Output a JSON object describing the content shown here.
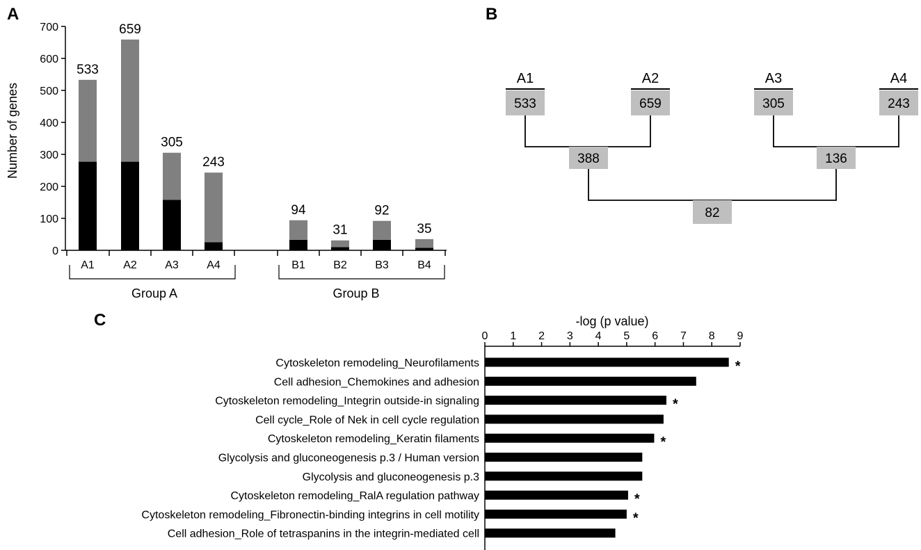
{
  "panels": {
    "a": "A",
    "b": "B",
    "c": "C"
  },
  "colors": {
    "total_bar": "#808080",
    "shared_bar": "#000000",
    "box_fill": "#bfbfbf",
    "line": "#000000"
  },
  "chart_data": [
    {
      "type": "bar",
      "stacked": true,
      "panel": "A",
      "categories": [
        "A1",
        "A2",
        "A3",
        "A4",
        "B1",
        "B2",
        "B3",
        "B4"
      ],
      "groups": [
        {
          "label": "Group A",
          "categories": [
            "A1",
            "A2",
            "A3",
            "A4"
          ]
        },
        {
          "label": "Group B",
          "categories": [
            "B1",
            "B2",
            "B3",
            "B4"
          ]
        }
      ],
      "series": [
        {
          "values": [
            277,
            277,
            158,
            25,
            33,
            10,
            33,
            8
          ]
        },
        {
          "values": [
            256,
            382,
            147,
            218,
            61,
            21,
            59,
            27
          ]
        }
      ],
      "totals": [
        533,
        659,
        305,
        243,
        94,
        31,
        92,
        35
      ],
      "ylabel": "Number of genes",
      "ylim": [
        0,
        700
      ],
      "yticks": [
        0,
        100,
        200,
        300,
        400,
        500,
        600,
        700
      ]
    },
    {
      "type": "tree",
      "panel": "B",
      "leaves": [
        {
          "label": "A1",
          "value": "533"
        },
        {
          "label": "A2",
          "value": "659"
        },
        {
          "label": "A3",
          "value": "305"
        },
        {
          "label": "A4",
          "value": "243"
        }
      ],
      "pairs": [
        "388",
        "136"
      ],
      "root": "82"
    },
    {
      "type": "bar",
      "orientation": "horizontal",
      "panel": "C",
      "xlabel": "-log (p value)",
      "xlim": [
        0,
        9
      ],
      "xticks": [
        0,
        1,
        2,
        3,
        4,
        5,
        6,
        7,
        8,
        9
      ],
      "categories": [
        "Cytoskeleton remodeling_Neurofilaments",
        "Cell adhesion_Chemokines and adhesion",
        "Cytoskeleton remodeling_Integrin outside-in signaling",
        "Cell cycle_Role of Nek in cell cycle regulation",
        "Cytoskeleton remodeling_Keratin filaments",
        "Glycolysis and gluconeogenesis p.3 / Human version",
        "Glycolysis and gluconeogenesis p.3",
        "Cytoskeleton remodeling_RalA regulation pathway",
        "Cytoskeleton remodeling_Fibronectin-binding integrins in cell motility",
        "Cell adhesion_Role of tetraspanins in the integrin-mediated cell"
      ],
      "values": [
        8.6,
        7.45,
        6.4,
        6.3,
        5.97,
        5.55,
        5.55,
        5.05,
        5.0,
        4.6
      ],
      "markers": [
        "*",
        "",
        "*",
        "",
        "*",
        "",
        "",
        "*",
        "*",
        ""
      ]
    }
  ]
}
